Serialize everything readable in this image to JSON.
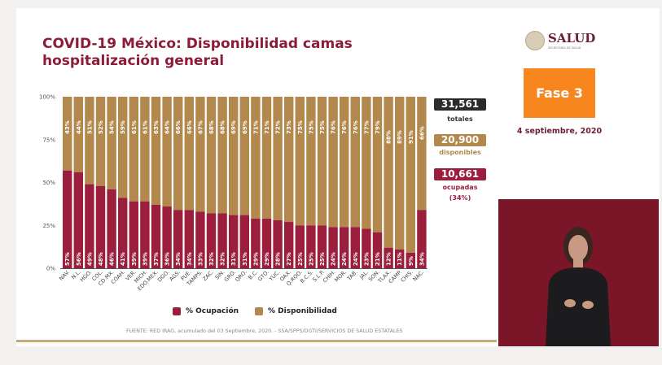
{
  "title": "COVID-19 México: Disponibilidad camas hospitalización general",
  "summary": {
    "totales": {
      "value": "31,561",
      "label": "totales"
    },
    "disponibles": {
      "value": "20,900",
      "label": "disponibles"
    },
    "ocupadas": {
      "value": "10,661",
      "label": "ocupadas",
      "pct": "(34%)"
    }
  },
  "logo": {
    "name": "SALUD",
    "sub": "SECRETARÍA DE SALUD"
  },
  "phase": "Fase 3",
  "date": "4 septiembre, 2020",
  "legend": {
    "ocupacion": "% Ocupación",
    "disponibilidad": "% Disponibilidad"
  },
  "source": "FUENTE: RED IRAG, acumulado del 03 Septiembre, 2020. -  SSA/SPPS/DGTI/SERVICIOS DE SALUD ESTATALES",
  "colors": {
    "ocupacion": "#9b1f3d",
    "disponibilidad": "#b3884d",
    "totales": "#2b2b2b",
    "fase": "#f7861e",
    "brand": "#6b1d3a"
  },
  "chart_data": {
    "type": "bar",
    "stacked": true,
    "categories": [
      "NAV.",
      "N.L.",
      "HGO.",
      "COL.",
      "CD.MX.",
      "COAH.",
      "VER.",
      "MICH.",
      "EDO.MEX.",
      "DGO.",
      "AGS.",
      "PUE.",
      "TAMPS.",
      "ZAC.",
      "SIN.",
      "GRO.",
      "QRO.",
      "B.C.",
      "GTO.",
      "YUC.",
      "OAX.",
      "Q.ROO.",
      "B.C.S.",
      "S.L.P.",
      "CHIH.",
      "MOR.",
      "TAB.",
      "JAL.",
      "SON.",
      "TLAX.",
      "CAMP.",
      "CHIS.",
      "NAC."
    ],
    "series": [
      {
        "name": "% Ocupación",
        "values": [
          57,
          56,
          49,
          48,
          46,
          41,
          39,
          39,
          37,
          36,
          34,
          34,
          33,
          32,
          32,
          31,
          31,
          29,
          29,
          28,
          27,
          25,
          25,
          25,
          24,
          24,
          24,
          23,
          21,
          12,
          11,
          9,
          34
        ]
      },
      {
        "name": "% Disponibilidad",
        "values": [
          43,
          44,
          51,
          52,
          54,
          59,
          61,
          61,
          63,
          64,
          66,
          66,
          67,
          68,
          68,
          69,
          69,
          71,
          71,
          72,
          73,
          75,
          75,
          75,
          76,
          76,
          76,
          77,
          79,
          88,
          89,
          91,
          66
        ]
      }
    ],
    "yticks": [
      "0%",
      "25%",
      "50%",
      "75%",
      "100%"
    ],
    "ylim": [
      0,
      100
    ],
    "legend_position": "bottom"
  }
}
